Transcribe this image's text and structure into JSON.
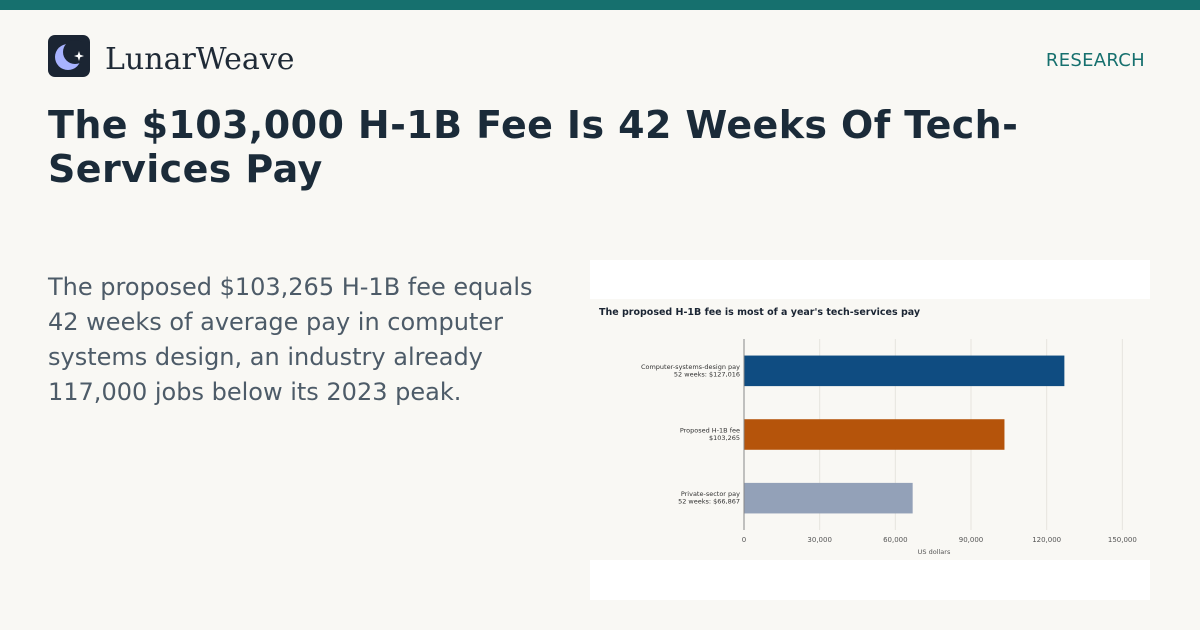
{
  "brand": {
    "name": "LunarWeave",
    "logo_icon": "crescent-moon-star-icon"
  },
  "section_label": "RESEARCH",
  "headline": "The $103,000 H-1B Fee Is 42 Weeks Of Tech-Services Pay",
  "summary": "The proposed $103,265 H-1B fee equals 42 weeks of average pay in computer systems design, an industry already 117,000 jobs below its 2023 peak.",
  "colors": {
    "accent": "#16706e",
    "bar_navy": "#0f4c81",
    "bar_orange": "#b5540b",
    "bar_slate": "#93a1b8"
  },
  "chart_data": {
    "type": "bar",
    "orientation": "horizontal",
    "title": "The proposed H-1B fee is most of a year's tech-services pay",
    "xlabel": "US dollars",
    "ylabel": "",
    "xlim": [
      0,
      157000
    ],
    "xticks": [
      0,
      30000,
      60000,
      90000,
      120000,
      150000
    ],
    "xtick_labels": [
      "0",
      "30,000",
      "60,000",
      "90,000",
      "120,000",
      "150,000"
    ],
    "grid": true,
    "categories": [
      [
        "Computer-systems-design pay",
        "52 weeks: $127,016"
      ],
      [
        "Proposed H-1B fee",
        "$103,265"
      ],
      [
        "Private-sector pay",
        "52 weeks: $66,867"
      ]
    ],
    "values": [
      127016,
      103265,
      66867
    ],
    "bar_colors": [
      "#0f4c81",
      "#b5540b",
      "#93a1b8"
    ]
  }
}
